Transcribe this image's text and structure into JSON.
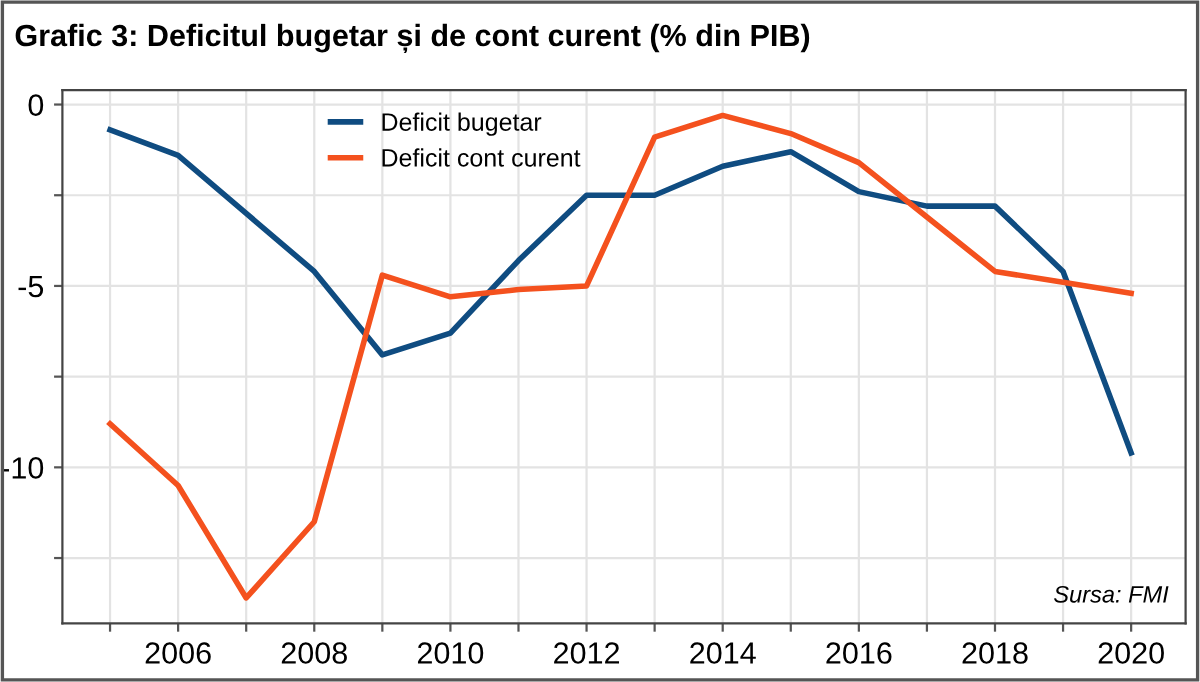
{
  "chart_data": {
    "type": "line",
    "title": "Grafic 3: Deficitul bugetar și de cont curent (% din PIB)",
    "x": [
      2005,
      2006,
      2007,
      2008,
      2009,
      2010,
      2011,
      2012,
      2013,
      2014,
      2015,
      2016,
      2017,
      2018,
      2019,
      2020
    ],
    "series": [
      {
        "name": "Deficit bugetar",
        "color": "#0f4c81",
        "values": [
          -0.7,
          -1.4,
          -3.0,
          -4.6,
          -6.9,
          -6.3,
          -4.3,
          -2.5,
          -2.5,
          -1.7,
          -1.3,
          -2.4,
          -2.8,
          -2.8,
          -4.6,
          -9.6
        ]
      },
      {
        "name": "Deficit cont curent",
        "color": "#f4511e",
        "values": [
          -8.8,
          -10.5,
          -13.6,
          -11.5,
          -4.7,
          -5.3,
          -5.1,
          -5.0,
          -0.9,
          -0.3,
          -0.8,
          -1.6,
          -3.1,
          -4.6,
          -4.9,
          -5.2
        ]
      }
    ],
    "xlim": [
      2004.3,
      2020.8
    ],
    "ylim": [
      -14.3,
      0.4
    ],
    "xticks": [
      {
        "value": 2005,
        "label": null
      },
      2006,
      {
        "value": 2007,
        "label": null
      },
      2008,
      {
        "value": 2009,
        "label": null
      },
      2010,
      {
        "value": 2011,
        "label": null
      },
      2012,
      {
        "value": 2013,
        "label": null
      },
      2014,
      {
        "value": 2015,
        "label": null
      },
      2016,
      {
        "value": 2017,
        "label": null
      },
      2018,
      {
        "value": 2019,
        "label": null
      },
      2020
    ],
    "yticks": [
      {
        "value": -12.5,
        "label": null
      },
      -10,
      {
        "value": -7.5,
        "label": null
      },
      -5,
      {
        "value": -2.5,
        "label": null
      },
      0
    ],
    "annotations": [
      "Sursa: FMI"
    ],
    "grid": true,
    "legend": "top",
    "line_style": "solid",
    "marker": "none"
  }
}
